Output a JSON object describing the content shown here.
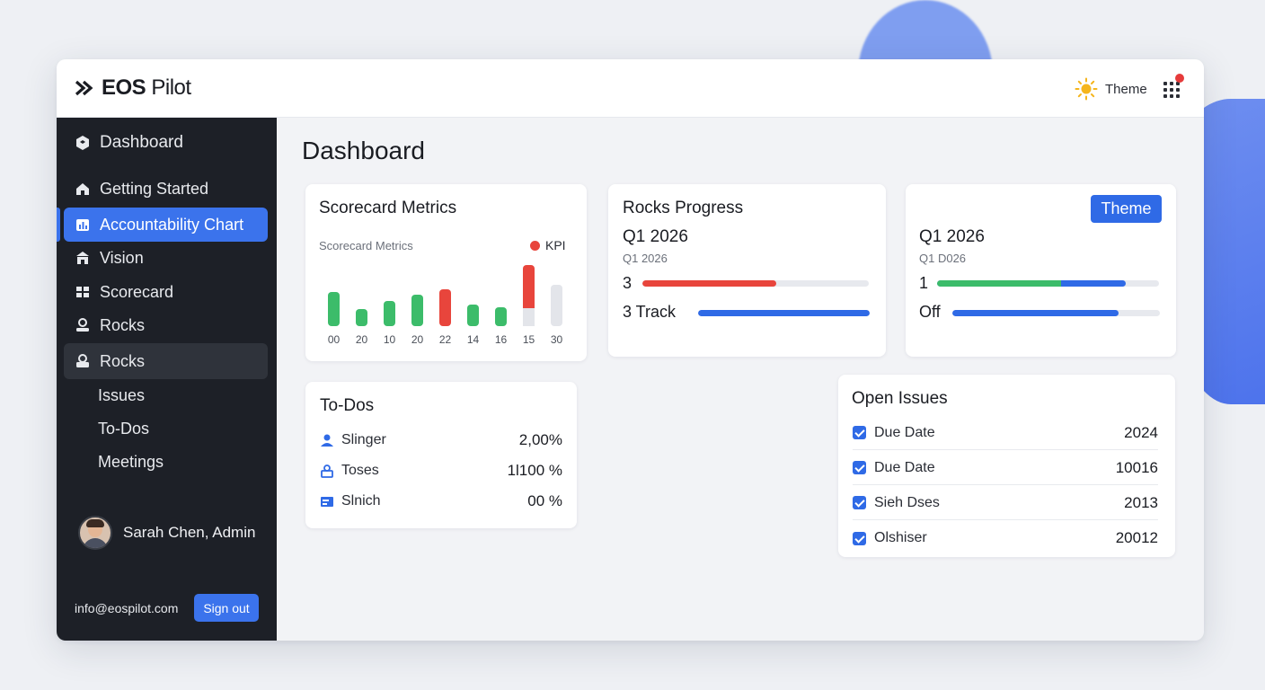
{
  "app": {
    "name_bold": "EOS",
    "name_light": "Pilot"
  },
  "topbar": {
    "theme_label": "Theme",
    "apps_icon": "grid-icon",
    "theme_icon": "sun-icon",
    "badge_color": "#e63b3b"
  },
  "sidebar": {
    "header": "Dashboard",
    "items": [
      {
        "label": "Getting Started",
        "icon": "home-icon"
      },
      {
        "label": "Accountability Chart",
        "icon": "chart-icon"
      },
      {
        "label": "Vision",
        "icon": "building-icon"
      },
      {
        "label": "Scorecard",
        "icon": "grid-icon"
      },
      {
        "label": "Rocks",
        "icon": "person-icon"
      },
      {
        "label": "Rocks",
        "icon": "lock-icon"
      },
      {
        "label": "Issues"
      },
      {
        "label": "To-Dos"
      },
      {
        "label": "Meetings"
      }
    ],
    "user": "Sarah Chen, Admin",
    "email": "info@eospilot.com",
    "signout": "Sign out"
  },
  "page": {
    "title": "Dashboard"
  },
  "scorecard": {
    "title": "Scorecard Metrics",
    "subtitle": "Scorecard Metrics",
    "legend": "KPI",
    "legend_color": "#e8453c"
  },
  "chart_data": {
    "type": "bar",
    "categories": [
      "00",
      "20",
      "10",
      "20",
      "22",
      "14",
      "16",
      "15",
      "30"
    ],
    "series": [
      {
        "values": [
          38,
          19,
          28,
          35,
          41,
          24,
          21,
          68,
          46
        ],
        "colors": [
          "#3cbc6a",
          "#3cbc6a",
          "#3cbc6a",
          "#3cbc6a",
          "#e8453c",
          "#3cbc6a",
          "#3cbc6a",
          "#e8453c",
          "#e3e5ea"
        ]
      }
    ],
    "ylim": [
      0,
      75
    ],
    "legend": "top-right",
    "grid": false
  },
  "rocks": {
    "title": "Rocks Progress",
    "quarter": "Q1 2026",
    "quarter_sub": "Q1 2026",
    "rows": [
      {
        "label": "3",
        "progress": 0.59,
        "color": "#e8453c"
      },
      {
        "label": "3 Track",
        "progress": 1.0,
        "color": "#2f6ae6"
      }
    ]
  },
  "theme_card": {
    "button": "Theme",
    "quarter": "Q1 2026",
    "quarter_sub": "Q1 D026",
    "rows": [
      {
        "label": "1",
        "progress_green": 0.56,
        "progress_total": 0.85
      },
      {
        "label": "Off",
        "progress": 0.8,
        "color": "#2f6ae6"
      }
    ]
  },
  "todos": {
    "title": "To-Dos",
    "rows": [
      {
        "label": "Slinger",
        "value": "2,00%",
        "icon": "person-icon"
      },
      {
        "label": "Toses",
        "value": "1l100 %",
        "icon": "lock-icon"
      },
      {
        "label": "Slnich",
        "value": "00 %",
        "icon": "board-icon"
      }
    ]
  },
  "issues": {
    "title": "Open Issues",
    "rows": [
      {
        "label": "Due Date",
        "value": "2024"
      },
      {
        "label": "Due Date",
        "value": "10016"
      },
      {
        "label": "Sieh Dses",
        "value": "2013"
      },
      {
        "label": "Olshiser",
        "value": "20012"
      }
    ]
  }
}
